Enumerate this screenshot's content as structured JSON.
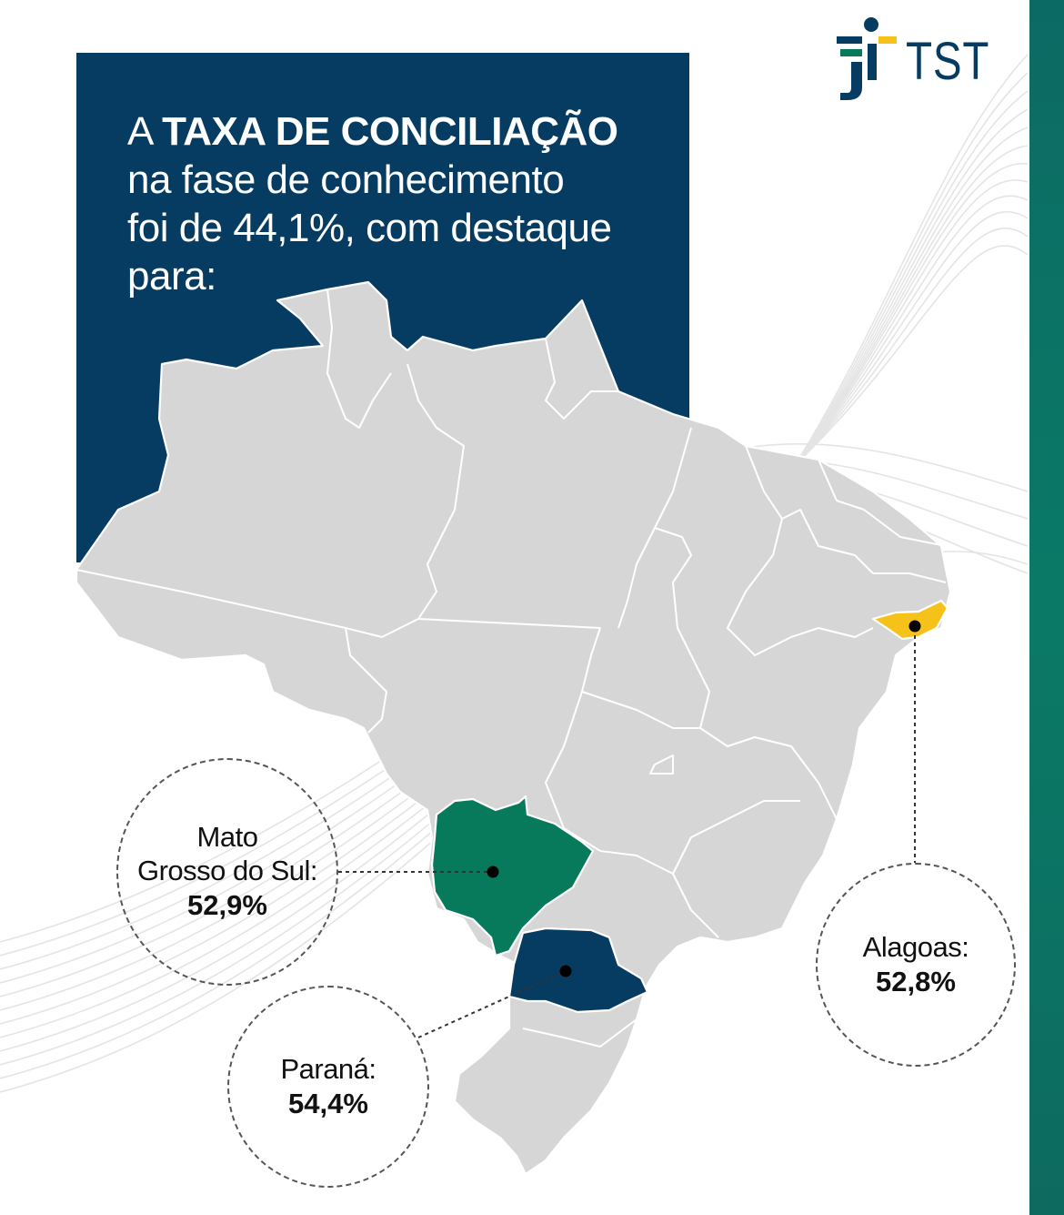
{
  "logo": {
    "text": "TST",
    "icon": "tst-figure-logo-icon"
  },
  "headline": {
    "prefix": "A ",
    "emphasis": "TAXA DE CONCILIAÇÃO",
    "line2": "na fase de conhecimento",
    "line3": "foi de 44,1%, com destaque",
    "line4": "para:"
  },
  "colors": {
    "navy": "#073c62",
    "map_gray": "#d6d6d6",
    "mato_grosso_do_sul": "#087a5c",
    "parana": "#073c62",
    "alagoas": "#f6c21a",
    "stripe": "#0a7a66"
  },
  "highlights": [
    {
      "id": "mato-grosso-do-sul",
      "name_line1": "Mato",
      "name_line2": "Grosso do Sul:",
      "value": "52,9%"
    },
    {
      "id": "parana",
      "name_line1": "Paraná:",
      "name_line2": "",
      "value": "54,4%"
    },
    {
      "id": "alagoas",
      "name_line1": "Alagoas:",
      "name_line2": "",
      "value": "52,8%"
    }
  ]
}
